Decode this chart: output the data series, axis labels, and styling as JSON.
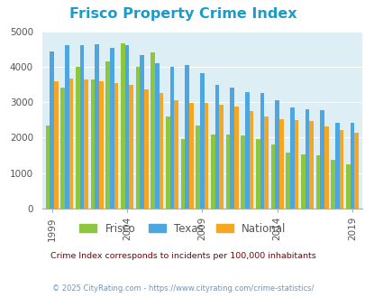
{
  "title": "Frisco Property Crime Index",
  "title_color": "#1a9bca",
  "years": [
    1999,
    2000,
    2001,
    2002,
    2003,
    2004,
    2005,
    2006,
    2007,
    2008,
    2009,
    2010,
    2011,
    2012,
    2013,
    2014,
    2015,
    2016,
    2017,
    2018,
    2019
  ],
  "frisco": [
    2350,
    3400,
    4000,
    3650,
    4150,
    4650,
    4000,
    4400,
    2600,
    1950,
    2350,
    2100,
    2100,
    2050,
    1950,
    1800,
    1570,
    1520,
    1510,
    1380,
    1250
  ],
  "texas": [
    4420,
    4600,
    4620,
    4630,
    4530,
    4620,
    4320,
    4100,
    4000,
    4050,
    3820,
    3500,
    3400,
    3280,
    3250,
    3050,
    2850,
    2800,
    2780,
    2420,
    2410
  ],
  "national": [
    3600,
    3670,
    3650,
    3600,
    3550,
    3490,
    3360,
    3250,
    3050,
    2980,
    2970,
    2920,
    2890,
    2760,
    2600,
    2530,
    2500,
    2480,
    2320,
    2220,
    2130
  ],
  "frisco_color": "#8dc63f",
  "texas_color": "#4da6e0",
  "national_color": "#f5a623",
  "plot_bg": "#ddeef5",
  "ylim": [
    0,
    5000
  ],
  "yticks": [
    0,
    1000,
    2000,
    3000,
    4000,
    5000
  ],
  "xlabel_ticks": [
    1999,
    2004,
    2009,
    2014,
    2019
  ],
  "subtitle": "Crime Index corresponds to incidents per 100,000 inhabitants",
  "footer": "© 2025 CityRating.com - https://www.cityrating.com/crime-statistics/",
  "subtitle_color": "#800000",
  "footer_color": "#6699cc",
  "legend_labels": [
    "Frisco",
    "Texas",
    "National"
  ]
}
